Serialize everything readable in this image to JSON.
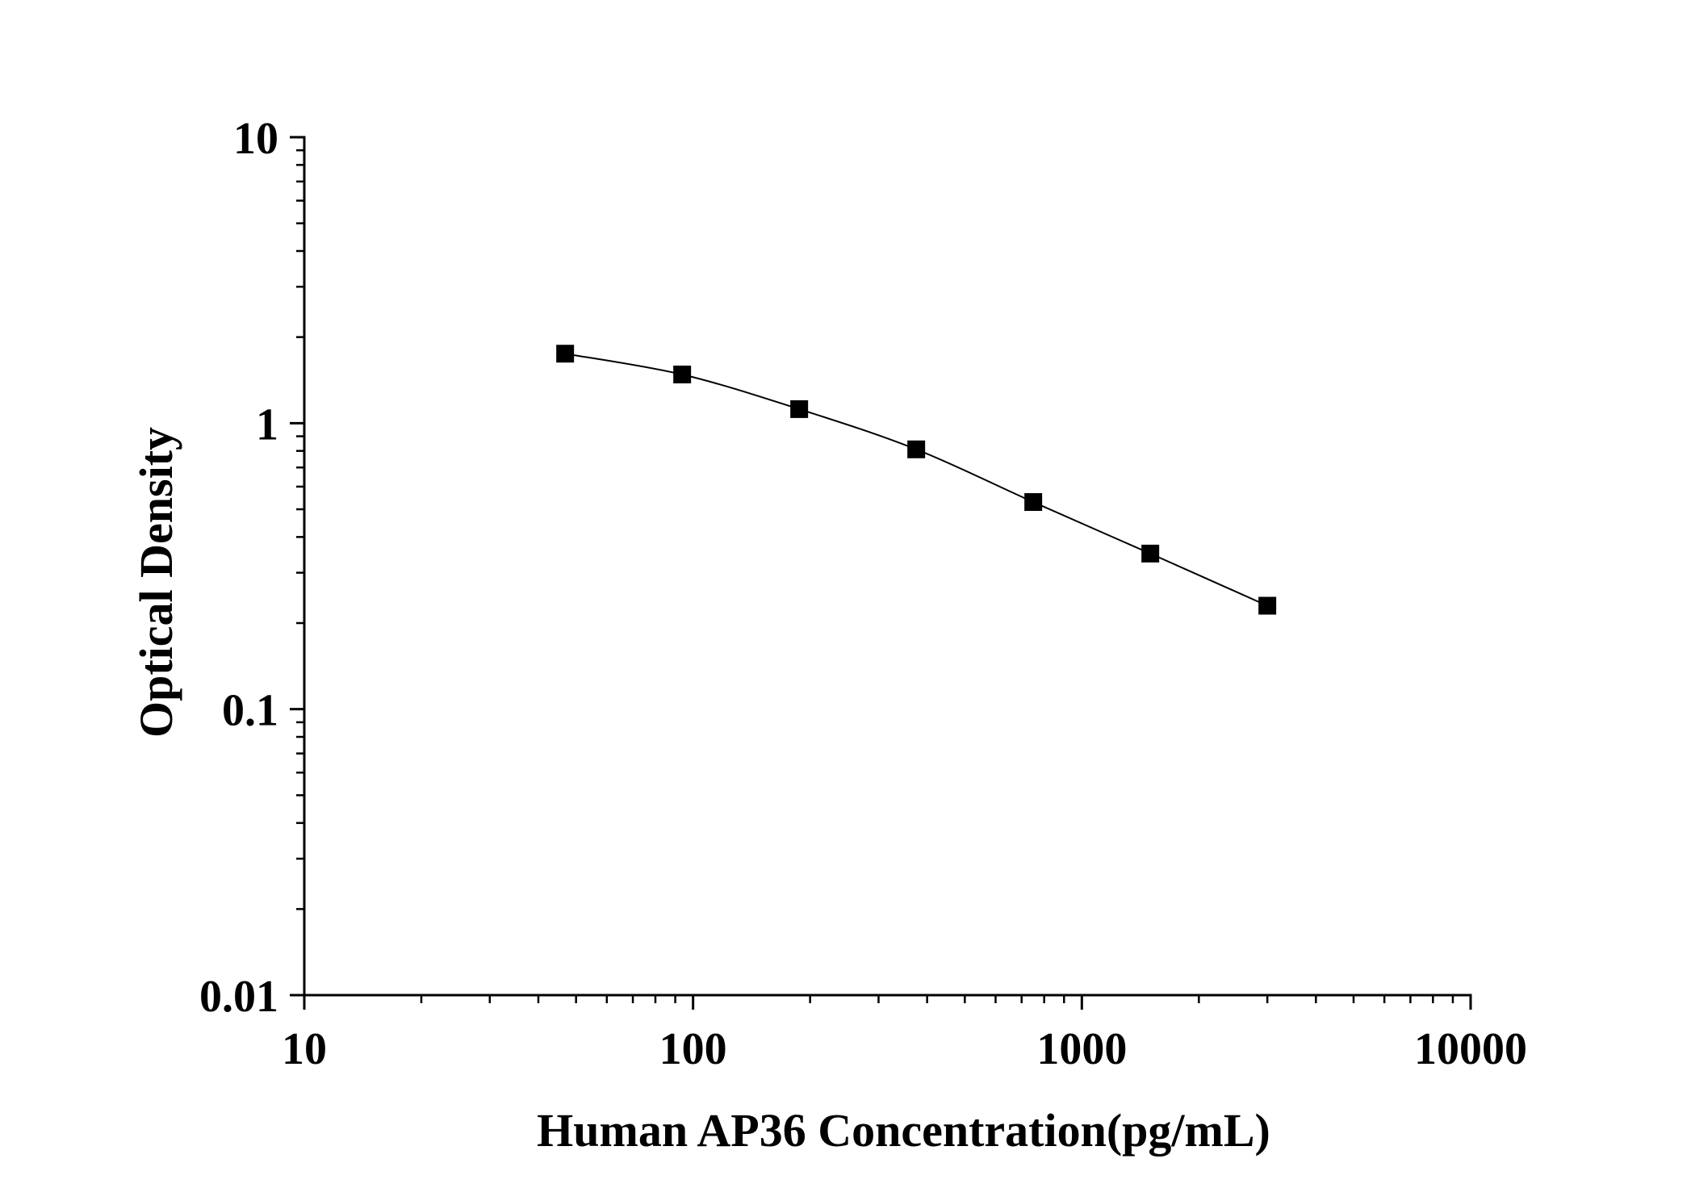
{
  "chart_data": {
    "type": "scatter",
    "xlabel": "Human AP36 Concentration(pg/mL)",
    "ylabel": "Optical Density",
    "xscale": "log",
    "yscale": "log",
    "xlim": [
      10,
      10000
    ],
    "ylim": [
      0.01,
      10
    ],
    "xticks": [
      10,
      100,
      1000,
      10000
    ],
    "xtick_labels": [
      "10",
      "100",
      "1000",
      "10000"
    ],
    "yticks": [
      0.01,
      0.1,
      1,
      10
    ],
    "ytick_labels": [
      "0.01",
      "0.1",
      "1",
      "10"
    ],
    "grid": false,
    "legend": "none",
    "series": [
      {
        "x": [
          46.875,
          93.75,
          187.5,
          375,
          750,
          1500,
          3000
        ],
        "y": [
          1.75,
          1.48,
          1.12,
          0.81,
          0.53,
          0.35,
          0.23
        ],
        "marker": "square",
        "color": "#000000",
        "line": "smooth"
      }
    ]
  }
}
